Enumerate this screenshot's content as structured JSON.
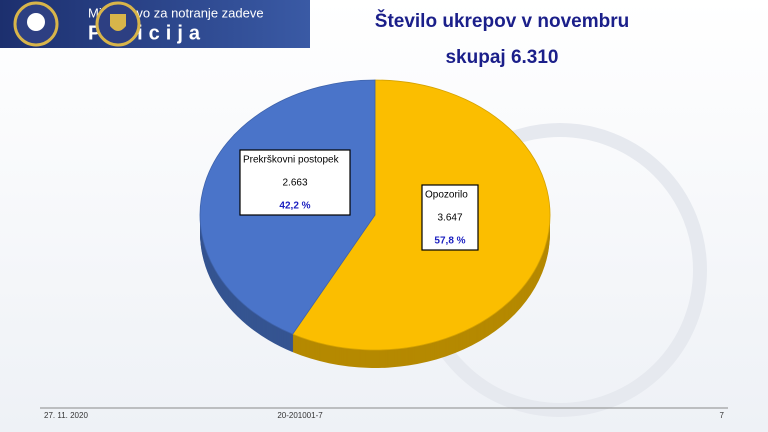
{
  "header": {
    "ministry": "Ministrstvo za notranje zadeve",
    "police": "Policija"
  },
  "chart_data": {
    "type": "pie",
    "title": "Število ukrepov v novembru",
    "subtitle": "skupaj 6.310",
    "categories": [
      "Prekrškovni postopek",
      "Opozorilo"
    ],
    "values": [
      2663,
      3647
    ],
    "value_labels": [
      "2.663",
      "3.647"
    ],
    "percentages": [
      42.2,
      57.8
    ],
    "percentage_labels": [
      "42,2 %",
      "57,8 %"
    ],
    "colors": [
      "#4a74c9",
      "#fbbe00"
    ]
  },
  "footer": {
    "date": "27. 11. 2020",
    "code": "20-201001-7",
    "page": "7"
  }
}
